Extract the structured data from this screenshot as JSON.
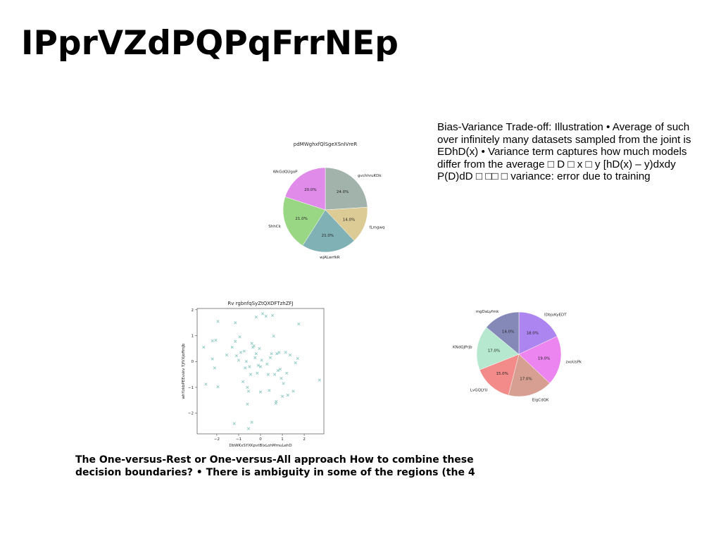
{
  "slide": {
    "title": "IPprVZdPQPqFrrNEp",
    "bias_text": "Bias-Variance Trade-off: Illustration • Average of such over infinitely many datasets sampled from the joint is EDhD(x) • Variance term captures how much models differ from the average □ D □ x □ y [hD(x) – y)dxdy P(D)dD □ □□ □ variance: error due to training",
    "ovr_text": "The One-versus-Rest or One-versus-All approach How to combine these decision boundaries? • There is ambiguity in some of the regions (the 4"
  },
  "chart_data": [
    {
      "type": "pie",
      "title": "pdMWghxfQlSgeXSnIVreR",
      "start_angle_deg": 90,
      "direction": "clockwise",
      "slices": [
        {
          "label": "gvchhruKDk",
          "value": 24.0,
          "pct_label": "24.0%",
          "color": "#a2b3ac"
        },
        {
          "label": "fLmgwq",
          "value": 14.0,
          "pct_label": "14.0%",
          "color": "#dccb95"
        },
        {
          "label": "wjALwrfkR",
          "value": 21.0,
          "pct_label": "21.0%",
          "color": "#80b1b5"
        },
        {
          "label": "ShhCk",
          "value": 21.0,
          "pct_label": "21.0%",
          "color": "#9ad785"
        },
        {
          "label": "WkGdQUgoP",
          "value": 20.0,
          "pct_label": "20.0%",
          "color": "#e08aea"
        }
      ]
    },
    {
      "type": "scatter",
      "title": "Rv rgbnfqSyZtQXDFTzhZFJ",
      "xlabel": "DbWKxSYXKpvtBlxLohMmuLehD",
      "ylabel": "whYzkbPEEvskv TjfVXjoffmJb",
      "xlim": [
        -2.9,
        2.9
      ],
      "ylim": [
        -2.8,
        2.05
      ],
      "xticks": [
        -2,
        -1,
        0,
        1,
        2
      ],
      "yticks": [
        -2,
        -1,
        0,
        1,
        2
      ],
      "marker": "x",
      "color": "#8ec9c2",
      "points": [
        [
          -2.6,
          0.55
        ],
        [
          -2.5,
          -0.88
        ],
        [
          -2.2,
          0.8
        ],
        [
          -2.05,
          0.82
        ],
        [
          -2.2,
          0.1
        ],
        [
          -2.1,
          -0.25
        ],
        [
          -1.95,
          1.55
        ],
        [
          -1.95,
          -0.98
        ],
        [
          -1.55,
          0.25
        ],
        [
          -1.3,
          0.55
        ],
        [
          -1.15,
          0.78
        ],
        [
          -1.15,
          1.5
        ],
        [
          -1.1,
          0.22
        ],
        [
          -1.0,
          0.05
        ],
        [
          -0.95,
          0.95
        ],
        [
          -0.9,
          0.35
        ],
        [
          -0.8,
          -0.78
        ],
        [
          -0.75,
          0.4
        ],
        [
          -0.7,
          -0.25
        ],
        [
          -0.65,
          0.0
        ],
        [
          -0.6,
          -1.0
        ],
        [
          -0.55,
          -1.15
        ],
        [
          -0.5,
          -0.2
        ],
        [
          -0.45,
          -0.5
        ],
        [
          -0.4,
          0.7
        ],
        [
          -0.35,
          0.55
        ],
        [
          -0.3,
          0.6
        ],
        [
          -0.25,
          0.15
        ],
        [
          -0.2,
          0.3
        ],
        [
          -0.15,
          -0.45
        ],
        [
          -0.1,
          -0.15
        ],
        [
          -0.05,
          0.5
        ],
        [
          0.0,
          -0.2
        ],
        [
          0.0,
          -1.18
        ],
        [
          0.05,
          0.05
        ],
        [
          0.1,
          1.85
        ],
        [
          0.25,
          1.75
        ],
        [
          0.3,
          -0.1
        ],
        [
          0.35,
          -0.5
        ],
        [
          0.4,
          -1.12
        ],
        [
          0.45,
          0.15
        ],
        [
          0.5,
          0.3
        ],
        [
          0.55,
          1.78
        ],
        [
          0.6,
          0.98
        ],
        [
          0.65,
          -0.5
        ],
        [
          0.7,
          -1.62
        ],
        [
          0.72,
          -1.55
        ],
        [
          0.75,
          0.3
        ],
        [
          0.8,
          -0.35
        ],
        [
          0.85,
          0.35
        ],
        [
          0.9,
          -0.3
        ],
        [
          0.95,
          -0.65
        ],
        [
          1.0,
          -1.35
        ],
        [
          1.05,
          -0.85
        ],
        [
          1.15,
          0.35
        ],
        [
          1.2,
          -0.45
        ],
        [
          1.25,
          -1.3
        ],
        [
          1.35,
          0.25
        ],
        [
          1.5,
          -1.15
        ],
        [
          1.6,
          -0.05
        ],
        [
          1.7,
          0.12
        ],
        [
          1.75,
          1.45
        ],
        [
          2.7,
          -0.72
        ],
        [
          -0.6,
          -1.65
        ],
        [
          -0.4,
          -2.35
        ],
        [
          -1.2,
          -2.4
        ],
        [
          -0.55,
          -2.6
        ],
        [
          -0.2,
          1.72
        ]
      ]
    },
    {
      "type": "pie",
      "title": "",
      "start_angle_deg": 90,
      "direction": "clockwise",
      "slices": [
        {
          "label": "lDbjvKyEDT",
          "value": 18.0,
          "pct_label": "18.0%",
          "color": "#ac85f0"
        },
        {
          "label": "zxoUsPk",
          "value": 19.0,
          "pct_label": "19.0%",
          "color": "#ec85ef"
        },
        {
          "label": "ElgCdQK",
          "value": 17.0,
          "pct_label": "17.0%",
          "color": "#d69f91"
        },
        {
          "label": "LvGQLYU",
          "value": 15.0,
          "pct_label": "15.0%",
          "color": "#f28b89"
        },
        {
          "label": "KNdGJPrjb",
          "value": 17.0,
          "pct_label": "17.0%",
          "color": "#b5e8ce"
        },
        {
          "label": "mgDaLyfmk",
          "value": 14.0,
          "pct_label": "14.0%",
          "color": "#8589b8"
        }
      ]
    }
  ]
}
